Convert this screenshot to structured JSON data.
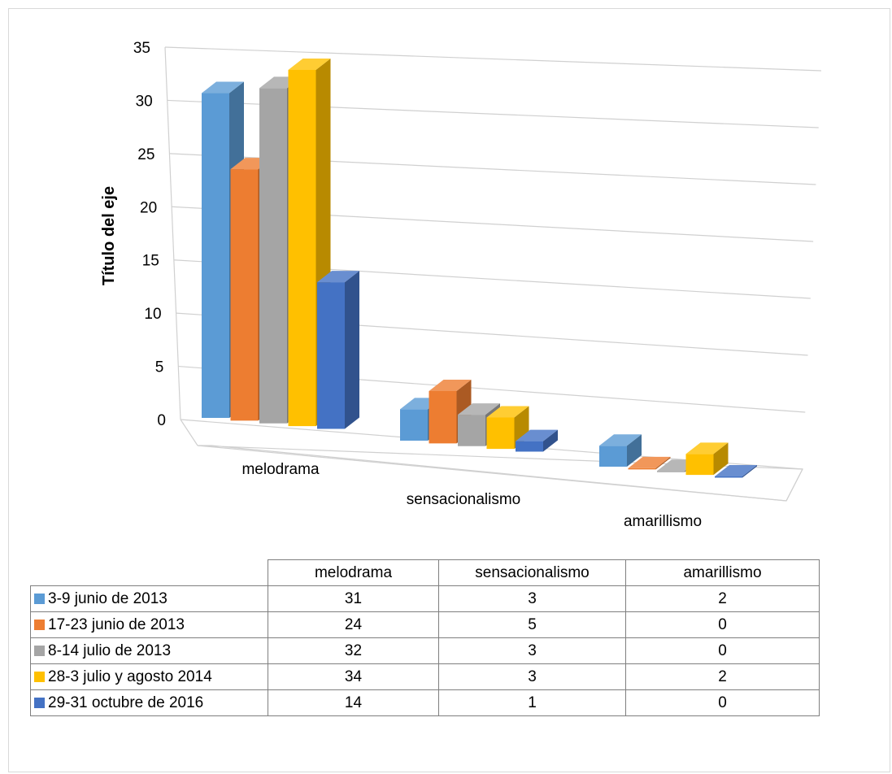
{
  "chart_data": {
    "type": "bar",
    "ylabel": "Título del eje",
    "ylim": [
      0,
      35
    ],
    "y_ticks": [
      "0",
      "5",
      "10",
      "15",
      "20",
      "25",
      "30",
      "35"
    ],
    "categories": [
      "melodrama",
      "sensacionalismo",
      "amarillismo"
    ],
    "series": [
      {
        "name": "3-9 junio de 2013",
        "color": "#5B9BD5",
        "values": [
          31,
          3,
          2
        ]
      },
      {
        "name": "17-23 junio de 2013",
        "color": "#ED7D31",
        "values": [
          24,
          5,
          0
        ]
      },
      {
        "name": "8-14 julio de 2013",
        "color": "#A5A5A5",
        "values": [
          32,
          3,
          0
        ]
      },
      {
        "name": "28-3 julio y agosto 2014",
        "color": "#FFC000",
        "values": [
          34,
          3,
          2
        ]
      },
      {
        "name": "29-31 octubre de 2016",
        "color": "#4472C4",
        "values": [
          14,
          1,
          0
        ]
      }
    ],
    "grid": true,
    "legend": "data-table"
  }
}
